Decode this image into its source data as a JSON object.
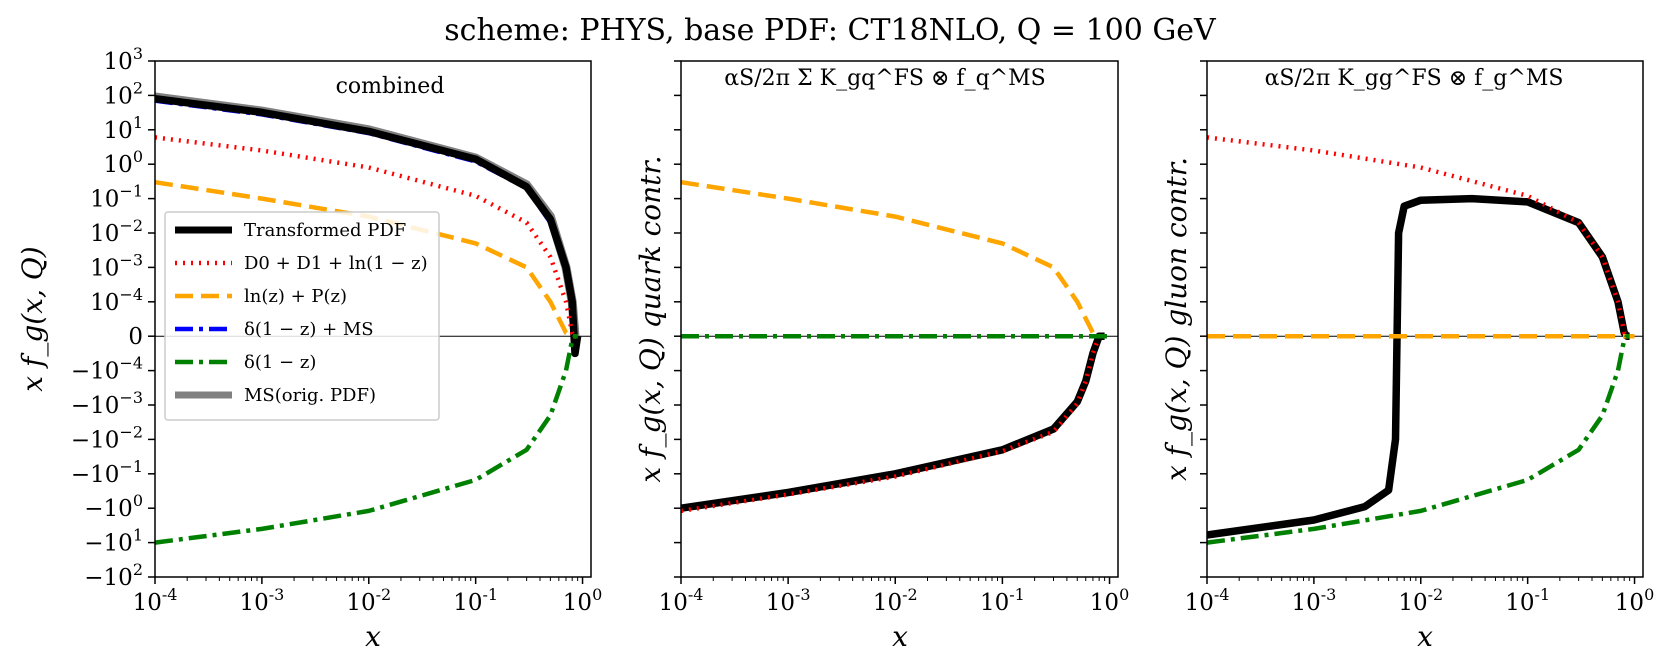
{
  "figure": {
    "suptitle": "scheme: PHYS, base PDF: CT18NLO, Q = 100 GeV"
  },
  "chart_data": [
    {
      "type": "line",
      "panel_title": "combined",
      "xlabel": "x",
      "ylabel": "x f_g(x, Q)",
      "xscale": "log",
      "xlim": [
        0.0001,
        1.2
      ],
      "yscale": "symlog",
      "ylim": [
        -100,
        1000
      ],
      "x_tick_labels": [
        "10^-4",
        "10^-3",
        "10^-2",
        "10^-1",
        "10^0"
      ],
      "y_tick_labels": [
        "10^3",
        "10^2",
        "10^1",
        "10^0",
        "10^-1",
        "10^-2",
        "10^-3",
        "10^-4",
        "0",
        "-10^-4",
        "-10^-3",
        "-10^-2",
        "-10^-1",
        "-10^0",
        "-10^1",
        "-10^2"
      ],
      "legend": [
        {
          "label": "Transformed PDF",
          "color": "#000000",
          "style": "solid"
        },
        {
          "label": "D0 + D1 + ln(1 − z)",
          "color": "#ff0000",
          "style": "dotted"
        },
        {
          "label": "ln(z) + P(z)",
          "color": "#ffa500",
          "style": "dashed"
        },
        {
          "label": "δ(1 − z) + MS",
          "color": "#0000ff",
          "style": "dashdot"
        },
        {
          "label": "δ(1 − z)",
          "color": "#008000",
          "style": "dashdot"
        },
        {
          "label": "MS(orig. PDF)",
          "color": "#808080",
          "style": "solid"
        }
      ],
      "legend_position": "center-left",
      "series": [
        {
          "name": "MS(orig. PDF)",
          "x": [
            0.0001,
            0.001,
            0.01,
            0.1,
            0.3,
            0.5,
            0.7,
            0.8,
            0.85,
            0.9
          ],
          "values": [
            90,
            35,
            10,
            1.5,
            0.25,
            0.03,
            0.001,
            0.0001,
            0,
            0
          ]
        },
        {
          "name": "Transformed PDF",
          "x": [
            0.0001,
            0.001,
            0.01,
            0.1,
            0.3,
            0.5,
            0.7,
            0.8,
            0.85,
            0.9
          ],
          "values": [
            80,
            32,
            9,
            1.4,
            0.22,
            0.025,
            0.001,
            0.0001,
            -5e-05,
            0
          ]
        },
        {
          "name": "δ(1 − z) + MS",
          "x": [
            0.0001,
            0.001,
            0.01,
            0.1,
            0.3,
            0.5,
            0.7,
            0.8,
            0.85,
            0.9
          ],
          "values": [
            70,
            28,
            8,
            1.2,
            0.2,
            0.02,
            0.0008,
            0.0001,
            0,
            0
          ]
        },
        {
          "name": "D0 + D1 + ln(1 − z)",
          "x": [
            0.0001,
            0.001,
            0.01,
            0.1,
            0.3,
            0.5,
            0.7,
            0.8,
            0.85,
            0.9
          ],
          "values": [
            6,
            2.5,
            0.8,
            0.12,
            0.02,
            0.002,
            0.0001,
            1e-05,
            0,
            0
          ]
        },
        {
          "name": "ln(z) + P(z)",
          "x": [
            0.0001,
            0.001,
            0.01,
            0.1,
            0.3,
            0.5,
            0.7,
            0.8,
            0.85,
            0.9
          ],
          "values": [
            0.3,
            0.1,
            0.03,
            0.005,
            0.001,
            0.0001,
            1e-05,
            0,
            0,
            0
          ]
        },
        {
          "name": "δ(1 − z)",
          "x": [
            0.0001,
            0.001,
            0.01,
            0.1,
            0.3,
            0.5,
            0.7,
            0.8,
            0.85,
            0.9
          ],
          "values": [
            -10,
            -4,
            -1.2,
            -0.15,
            -0.02,
            -0.002,
            -0.0001,
            -1e-05,
            0,
            0
          ]
        }
      ]
    },
    {
      "type": "line",
      "panel_title": "αS/2π Σ K_gq^FS ⊗ f_q^MS",
      "xlabel": "x",
      "ylabel": "x f_g(x, Q)  quark contr.",
      "xscale": "log",
      "xlim": [
        0.0001,
        1.2
      ],
      "yscale": "symlog",
      "ylim": [
        -100,
        1000
      ],
      "x_tick_labels": [
        "10^-4",
        "10^-3",
        "10^-2",
        "10^-1",
        "10^0"
      ],
      "series": [
        {
          "name": "ln(z) + P(z)",
          "x": [
            0.0001,
            0.001,
            0.01,
            0.1,
            0.3,
            0.5,
            0.7,
            0.8,
            0.85,
            0.9
          ],
          "values": [
            0.3,
            0.1,
            0.03,
            0.005,
            0.001,
            0.0001,
            1e-05,
            0,
            0,
            0
          ]
        },
        {
          "name": "δ(1 − z)",
          "x": [
            0.0001,
            1.0
          ],
          "values": [
            0,
            0
          ]
        },
        {
          "name": "Transformed PDF",
          "x": [
            0.0001,
            0.001,
            0.01,
            0.1,
            0.3,
            0.5,
            0.6,
            0.7,
            0.8,
            0.9
          ],
          "values": [
            -1,
            -0.35,
            -0.1,
            -0.02,
            -0.005,
            -0.0008,
            -0.0002,
            -5e-05,
            0,
            0
          ]
        },
        {
          "name": "D0 + D1 + ln(1 − z)",
          "x": [
            0.0001,
            0.001,
            0.01,
            0.1,
            0.3,
            0.5,
            0.6,
            0.7,
            0.8,
            0.9
          ],
          "values": [
            -1.2,
            -0.4,
            -0.12,
            -0.022,
            -0.006,
            -0.0009,
            -0.0002,
            -5e-05,
            0,
            0
          ]
        }
      ]
    },
    {
      "type": "line",
      "panel_title": "αS/2π K_gg^FS ⊗ f_g^MS",
      "xlabel": "x",
      "ylabel": "x f_g(x, Q)  gluon contr.",
      "xscale": "log",
      "xlim": [
        0.0001,
        1.2
      ],
      "yscale": "symlog",
      "ylim": [
        -100,
        1000
      ],
      "x_tick_labels": [
        "10^-4",
        "10^-3",
        "10^-2",
        "10^-1",
        "10^0"
      ],
      "series": [
        {
          "name": "D0 + D1 + ln(1 − z)",
          "x": [
            0.0001,
            0.001,
            0.01,
            0.1,
            0.3,
            0.5,
            0.7,
            0.8,
            0.85,
            0.9
          ],
          "values": [
            6,
            2.5,
            0.8,
            0.12,
            0.02,
            0.002,
            0.0001,
            1e-05,
            0,
            0
          ]
        },
        {
          "name": "ln(z) + P(z)",
          "x": [
            0.0001,
            1.0
          ],
          "values": [
            0,
            0
          ]
        },
        {
          "name": "Transformed PDF",
          "x": [
            0.0001,
            0.001,
            0.003,
            0.005,
            0.0058,
            0.0062,
            0.007,
            0.01,
            0.03,
            0.1,
            0.3,
            0.5,
            0.7,
            0.8,
            0.85,
            0.9
          ],
          "values": [
            -6,
            -2.2,
            -0.9,
            -0.3,
            -0.01,
            0.01,
            0.06,
            0.09,
            0.1,
            0.08,
            0.02,
            0.002,
            0.0001,
            1e-05,
            0,
            0
          ]
        },
        {
          "name": "δ(1 − z)",
          "x": [
            0.0001,
            0.001,
            0.01,
            0.1,
            0.3,
            0.5,
            0.7,
            0.8,
            0.85,
            0.9
          ],
          "values": [
            -10,
            -4,
            -1.2,
            -0.15,
            -0.02,
            -0.002,
            -0.0001,
            -1e-05,
            0,
            0
          ]
        }
      ]
    }
  ]
}
